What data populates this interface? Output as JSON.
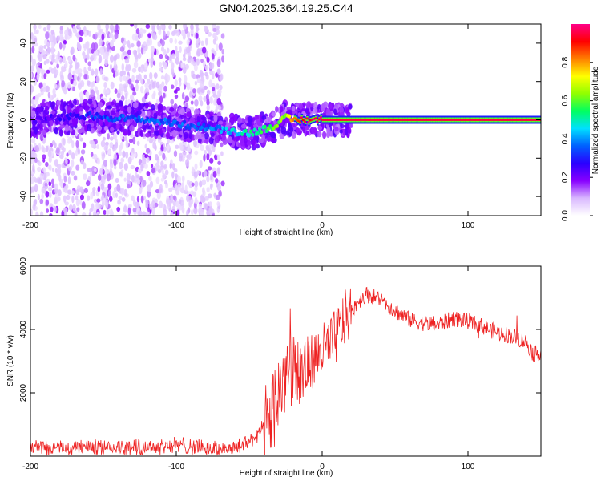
{
  "title": "GN04.2025.364.19.25.C44",
  "chart_data": [
    {
      "type": "heatmap",
      "xlabel": "Height of straight line (km)",
      "ylabel": "Frequency (Hz)",
      "xlim": [
        -200,
        150
      ],
      "ylim": [
        -50,
        50
      ],
      "xticks": [
        -200,
        -100,
        0,
        100
      ],
      "yticks": [
        -40,
        -20,
        0,
        20,
        40
      ],
      "colorbar": {
        "label": "Normalized spectral amplitude",
        "range": [
          0,
          1
        ],
        "ticks": [
          "0.0",
          "0.2",
          "0.4",
          "0.6",
          "0.8"
        ],
        "colormap": [
          "#ffffff",
          "#d9b8ff",
          "#8800ff",
          "#2a00ff",
          "#0060ff",
          "#00e0ff",
          "#00ff60",
          "#90ff00",
          "#ffff00",
          "#ff8000",
          "#ff0000",
          "#ff0088"
        ]
      },
      "ridge": {
        "x": [
          -200,
          -180,
          -160,
          -140,
          -120,
          -100,
          -80,
          -70,
          -60,
          -50,
          -40,
          -30,
          -25,
          -20,
          -10,
          0,
          20,
          50,
          100,
          150
        ],
        "freq": [
          0,
          1,
          2,
          1,
          0,
          -2,
          -4,
          -5,
          -6,
          -7,
          -5,
          -2,
          1,
          0,
          0,
          0,
          0,
          0,
          0,
          0
        ],
        "amplitude": [
          0.15,
          0.2,
          0.25,
          0.3,
          0.3,
          0.3,
          0.3,
          0.35,
          0.4,
          0.45,
          0.5,
          0.55,
          0.6,
          0.8,
          0.9,
          0.95,
          0.95,
          0.95,
          0.95,
          0.95
        ]
      }
    },
    {
      "type": "line",
      "xlabel": "Height of straight line (km)",
      "ylabel": "SNR (10 * v/v)",
      "xlim": [
        -200,
        150
      ],
      "ylim": [
        0,
        6000
      ],
      "xticks": [
        -200,
        -100,
        0,
        100
      ],
      "yticks": [
        2000,
        4000,
        6000
      ],
      "color": "#ee2222",
      "series": [
        {
          "name": "SNR",
          "x": [
            -200,
            -180,
            -160,
            -140,
            -120,
            -100,
            -90,
            -80,
            -70,
            -60,
            -50,
            -45,
            -40,
            -35,
            -30,
            -25,
            -20,
            -15,
            -10,
            -5,
            0,
            5,
            10,
            15,
            20,
            25,
            30,
            35,
            40,
            50,
            60,
            70,
            80,
            90,
            100,
            110,
            120,
            130,
            140,
            145,
            150
          ],
          "y": [
            250,
            260,
            300,
            280,
            300,
            350,
            300,
            260,
            230,
            260,
            450,
            650,
            900,
            1300,
            2000,
            2600,
            3000,
            2500,
            2900,
            3100,
            3300,
            3500,
            3800,
            4300,
            4600,
            4900,
            5100,
            5050,
            4950,
            4600,
            4300,
            4200,
            4150,
            4350,
            4250,
            4100,
            3900,
            3800,
            3600,
            3200,
            3300
          ]
        }
      ]
    }
  ]
}
